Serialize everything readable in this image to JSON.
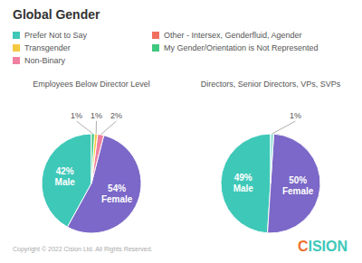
{
  "title": "Global Gender",
  "legend_items": [
    {
      "name": "Prefer Not to Say",
      "color": "#3EC8B8"
    },
    {
      "name": "Transgender",
      "color": "#F5C842"
    },
    {
      "name": "Non-Binary",
      "color": "#F080A0"
    },
    {
      "name": "Other - Intersex, Genderfluid, Agender",
      "color": "#F07060"
    },
    {
      "name": "My Gender/Orientation is Not Represented",
      "color": "#3EC880"
    }
  ],
  "chart_data": [
    {
      "type": "pie",
      "title": "Employees Below Director Level",
      "categories": [
        "Male",
        "Female",
        null,
        null,
        null
      ],
      "values": [
        42,
        54,
        2,
        1,
        1
      ],
      "value_labels": [
        "42%",
        "54%",
        "2%",
        "1%",
        "1%"
      ],
      "colors": [
        "#3EC8B8",
        "#7B68C8",
        "#F080A0",
        "#F5C842",
        "#3EC880"
      ],
      "data_labels": true
    },
    {
      "type": "pie",
      "title": "Directors, Senior Directors, VPs, SVPs",
      "categories": [
        "Male",
        "Female",
        null
      ],
      "values": [
        49,
        50,
        1
      ],
      "value_labels": [
        "49%",
        "50%",
        "1%"
      ],
      "colors": [
        "#3EC8B8",
        "#7B68C8",
        "#90E0D8"
      ],
      "data_labels": true
    }
  ],
  "annotations": [
    {
      "text": "Copyright © 2022 Cision Ltd. All Rights Reserved."
    },
    {
      "text": "C",
      "color": "#F07030"
    },
    {
      "text": "ISION",
      "color": "#3EC8B8"
    }
  ]
}
